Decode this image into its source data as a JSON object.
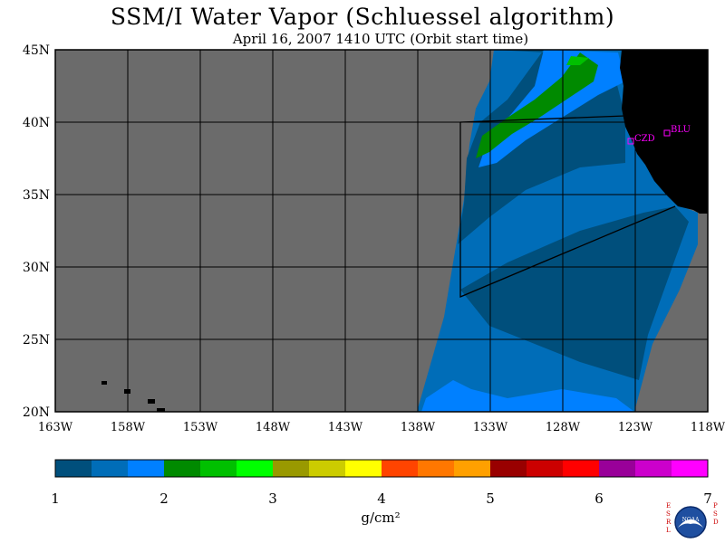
{
  "title": "SSM/I Water Vapor (Schluessel algorithm)",
  "subtitle": "April 16, 2007  1410 UTC  (Orbit start time)",
  "map": {
    "lat_labels": [
      "45N",
      "40N",
      "35N",
      "30N",
      "25N",
      "20N"
    ],
    "lon_labels": [
      "163W",
      "158W",
      "153W",
      "148W",
      "143W",
      "138W",
      "133W",
      "128W",
      "123W",
      "118W"
    ],
    "stations": [
      {
        "id": "CZD",
        "label": "CZD"
      },
      {
        "id": "BLU",
        "label": "BLU"
      }
    ],
    "colors": {
      "no_data": "#6b6b6b",
      "land": "#000000",
      "station": "#ff00ff"
    }
  },
  "colorbar": {
    "unit": "g/cm²",
    "tick_labels": [
      "1",
      "2",
      "3",
      "4",
      "5",
      "6",
      "7"
    ],
    "colors": [
      "#004f7c",
      "#006db8",
      "#0080ff",
      "#008a00",
      "#00c000",
      "#00ff00",
      "#999900",
      "#cccc00",
      "#ffff00",
      "#ff4400",
      "#ff7700",
      "#ffa000",
      "#990000",
      "#cc0000",
      "#ff0000",
      "#990099",
      "#cc00cc",
      "#ff00ff"
    ]
  },
  "logo": {
    "left_letters": "ESRL",
    "right_letters": "PSD",
    "text": "NOAA"
  }
}
